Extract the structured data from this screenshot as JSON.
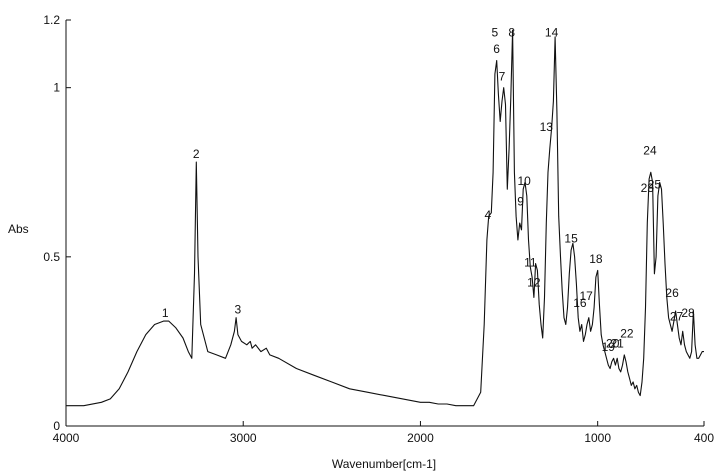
{
  "chart_data": {
    "type": "line",
    "xlabel": "Wavenumber[cm-1]",
    "ylabel": "Abs",
    "xlim": [
      4000,
      400
    ],
    "ylim": [
      0,
      1.2
    ],
    "x_reversed": true,
    "grid": false,
    "x_ticks": [
      {
        "value": 4000,
        "label": "4000"
      },
      {
        "value": 3000,
        "label": "3000"
      },
      {
        "value": 2000,
        "label": "2000"
      },
      {
        "value": 1000,
        "label": "1000"
      },
      {
        "value": 400,
        "label": "400"
      }
    ],
    "y_ticks": [
      {
        "value": 0,
        "label": "0"
      },
      {
        "value": 0.5,
        "label": "0.5"
      },
      {
        "value": 1.0,
        "label": "1"
      },
      {
        "value": 1.2,
        "label": "1.2"
      }
    ],
    "series": [
      {
        "color": "#111111",
        "x": [
          4000,
          3900,
          3800,
          3750,
          3700,
          3650,
          3600,
          3550,
          3500,
          3450,
          3420,
          3380,
          3340,
          3310,
          3290,
          3275,
          3265,
          3255,
          3240,
          3200,
          3150,
          3100,
          3070,
          3050,
          3040,
          3030,
          3010,
          2980,
          2960,
          2950,
          2930,
          2900,
          2870,
          2850,
          2800,
          2700,
          2600,
          2500,
          2400,
          2300,
          2200,
          2100,
          2000,
          1950,
          1900,
          1850,
          1800,
          1750,
          1700,
          1660,
          1640,
          1625,
          1615,
          1600,
          1590,
          1580,
          1570,
          1560,
          1550,
          1540,
          1530,
          1520,
          1510,
          1500,
          1490,
          1480,
          1470,
          1460,
          1450,
          1440,
          1430,
          1420,
          1410,
          1400,
          1390,
          1380,
          1370,
          1360,
          1350,
          1340,
          1330,
          1320,
          1310,
          1300,
          1290,
          1280,
          1270,
          1260,
          1250,
          1240,
          1230,
          1220,
          1210,
          1200,
          1190,
          1180,
          1170,
          1160,
          1150,
          1140,
          1130,
          1120,
          1110,
          1100,
          1090,
          1080,
          1070,
          1060,
          1050,
          1040,
          1030,
          1020,
          1010,
          1000,
          990,
          980,
          970,
          960,
          950,
          940,
          930,
          920,
          910,
          900,
          890,
          880,
          870,
          860,
          850,
          840,
          830,
          820,
          810,
          800,
          790,
          780,
          770,
          760,
          750,
          740,
          730,
          720,
          710,
          700,
          690,
          680,
          670,
          660,
          650,
          640,
          630,
          620,
          610,
          600,
          590,
          580,
          570,
          560,
          550,
          540,
          530,
          520,
          510,
          500,
          490,
          480,
          470,
          460,
          450,
          440,
          430,
          420,
          410,
          400
        ],
        "y": [
          0.06,
          0.06,
          0.07,
          0.08,
          0.11,
          0.16,
          0.22,
          0.27,
          0.3,
          0.31,
          0.31,
          0.29,
          0.26,
          0.22,
          0.2,
          0.45,
          0.78,
          0.5,
          0.3,
          0.22,
          0.21,
          0.2,
          0.24,
          0.28,
          0.32,
          0.27,
          0.25,
          0.24,
          0.25,
          0.23,
          0.24,
          0.22,
          0.23,
          0.21,
          0.2,
          0.17,
          0.15,
          0.13,
          0.11,
          0.1,
          0.09,
          0.08,
          0.07,
          0.07,
          0.065,
          0.065,
          0.06,
          0.06,
          0.06,
          0.1,
          0.3,
          0.55,
          0.62,
          0.63,
          0.75,
          1.04,
          1.08,
          0.98,
          0.9,
          0.96,
          1.0,
          0.95,
          0.7,
          0.82,
          0.97,
          1.17,
          0.75,
          0.62,
          0.55,
          0.6,
          0.58,
          0.7,
          0.72,
          0.68,
          0.55,
          0.47,
          0.44,
          0.38,
          0.48,
          0.46,
          0.36,
          0.3,
          0.26,
          0.38,
          0.6,
          0.75,
          0.82,
          0.88,
          0.96,
          1.15,
          0.93,
          0.62,
          0.5,
          0.4,
          0.32,
          0.3,
          0.35,
          0.45,
          0.52,
          0.54,
          0.5,
          0.42,
          0.32,
          0.28,
          0.3,
          0.25,
          0.27,
          0.3,
          0.32,
          0.28,
          0.3,
          0.35,
          0.44,
          0.46,
          0.36,
          0.27,
          0.24,
          0.22,
          0.2,
          0.18,
          0.17,
          0.19,
          0.2,
          0.18,
          0.2,
          0.17,
          0.16,
          0.18,
          0.21,
          0.19,
          0.16,
          0.14,
          0.12,
          0.13,
          0.11,
          0.12,
          0.1,
          0.09,
          0.13,
          0.2,
          0.35,
          0.6,
          0.73,
          0.75,
          0.72,
          0.45,
          0.5,
          0.68,
          0.72,
          0.7,
          0.6,
          0.48,
          0.38,
          0.32,
          0.3,
          0.28,
          0.31,
          0.34,
          0.3,
          0.26,
          0.24,
          0.28,
          0.24,
          0.22,
          0.21,
          0.2,
          0.22,
          0.34,
          0.24,
          0.2,
          0.2,
          0.21,
          0.22,
          0.22
        ]
      }
    ],
    "peak_labels": [
      {
        "label": "1",
        "x": 3440,
        "y": 0.31
      },
      {
        "label": "2",
        "x": 3265,
        "y": 0.78
      },
      {
        "label": "3",
        "x": 3030,
        "y": 0.32
      },
      {
        "label": "4",
        "x": 1620,
        "y": 0.6
      },
      {
        "label": "5",
        "x": 1580,
        "y": 1.14
      },
      {
        "label": "6",
        "x": 1570,
        "y": 1.09
      },
      {
        "label": "7",
        "x": 1540,
        "y": 1.01
      },
      {
        "label": "8",
        "x": 1485,
        "y": 1.14
      },
      {
        "label": "9",
        "x": 1435,
        "y": 0.64
      },
      {
        "label": "10",
        "x": 1415,
        "y": 0.7
      },
      {
        "label": "11",
        "x": 1380,
        "y": 0.46
      },
      {
        "label": "12",
        "x": 1360,
        "y": 0.4
      },
      {
        "label": "13",
        "x": 1290,
        "y": 0.86
      },
      {
        "label": "14",
        "x": 1260,
        "y": 1.14
      },
      {
        "label": "15",
        "x": 1150,
        "y": 0.53
      },
      {
        "label": "16",
        "x": 1100,
        "y": 0.34
      },
      {
        "label": "17",
        "x": 1065,
        "y": 0.36
      },
      {
        "label": "18",
        "x": 1010,
        "y": 0.47
      },
      {
        "label": "19",
        "x": 940,
        "y": 0.21
      },
      {
        "label": "20",
        "x": 915,
        "y": 0.22
      },
      {
        "label": "21",
        "x": 890,
        "y": 0.22
      },
      {
        "label": "22",
        "x": 835,
        "y": 0.25
      },
      {
        "label": "23",
        "x": 720,
        "y": 0.68
      },
      {
        "label": "24",
        "x": 705,
        "y": 0.79
      },
      {
        "label": "25",
        "x": 680,
        "y": 0.69
      },
      {
        "label": "26",
        "x": 580,
        "y": 0.37
      },
      {
        "label": "27",
        "x": 555,
        "y": 0.3
      },
      {
        "label": "28",
        "x": 490,
        "y": 0.31
      }
    ]
  }
}
